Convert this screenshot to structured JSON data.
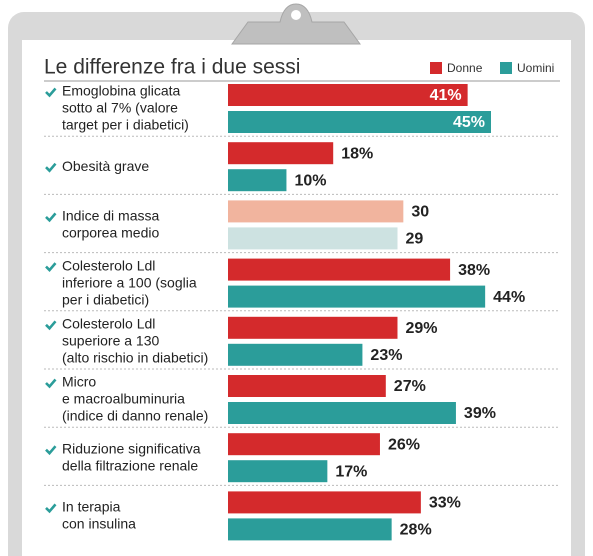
{
  "chart_data": {
    "type": "bar",
    "orientation": "horizontal",
    "title": "Le differenze fra i due sessi",
    "categories": [
      [
        "Emoglobina glicata",
        "sotto al 7% (valore",
        "target per i diabetici)"
      ],
      [
        "Obesità grave"
      ],
      [
        "Indice di massa",
        "corporea medio"
      ],
      [
        "Colesterolo Ldl",
        "inferiore a 100 (soglia",
        "per i diabetici)"
      ],
      [
        "Colesterolo Ldl",
        "superiore a 130",
        "(alto rischio in diabetici)"
      ],
      [
        "Micro",
        "e macroalbuminuria",
        "(indice di danno renale)"
      ],
      [
        "Riduzione significativa",
        "della filtrazione renale"
      ],
      [
        "In terapia",
        "con insulina"
      ]
    ],
    "series": [
      {
        "name": "Donne",
        "color": "#d42a2c",
        "colors": [
          "#d42a2c",
          "#d42a2c",
          "#f1b49e",
          "#d42a2c",
          "#d42a2c",
          "#d42a2c",
          "#d42a2c",
          "#d42a2c"
        ],
        "values": [
          41,
          18,
          30,
          38,
          29,
          27,
          26,
          33
        ],
        "value_labels": [
          "41%",
          "18%",
          "30",
          "38%",
          "29%",
          "27%",
          "26%",
          "33%"
        ]
      },
      {
        "name": "Uomini",
        "color": "#2b9d9a",
        "colors": [
          "#2b9d9a",
          "#2b9d9a",
          "#cde2e1",
          "#2b9d9a",
          "#2b9d9a",
          "#2b9d9a",
          "#2b9d9a",
          "#2b9d9a"
        ],
        "values": [
          45,
          10,
          29,
          44,
          23,
          39,
          17,
          28
        ],
        "value_labels": [
          "45%",
          "10%",
          "29",
          "44%",
          "23%",
          "39%",
          "17%",
          "28%"
        ]
      }
    ],
    "inside_labels": [
      true,
      false,
      false,
      false,
      false,
      false,
      false,
      false
    ],
    "legend": "top-right"
  }
}
